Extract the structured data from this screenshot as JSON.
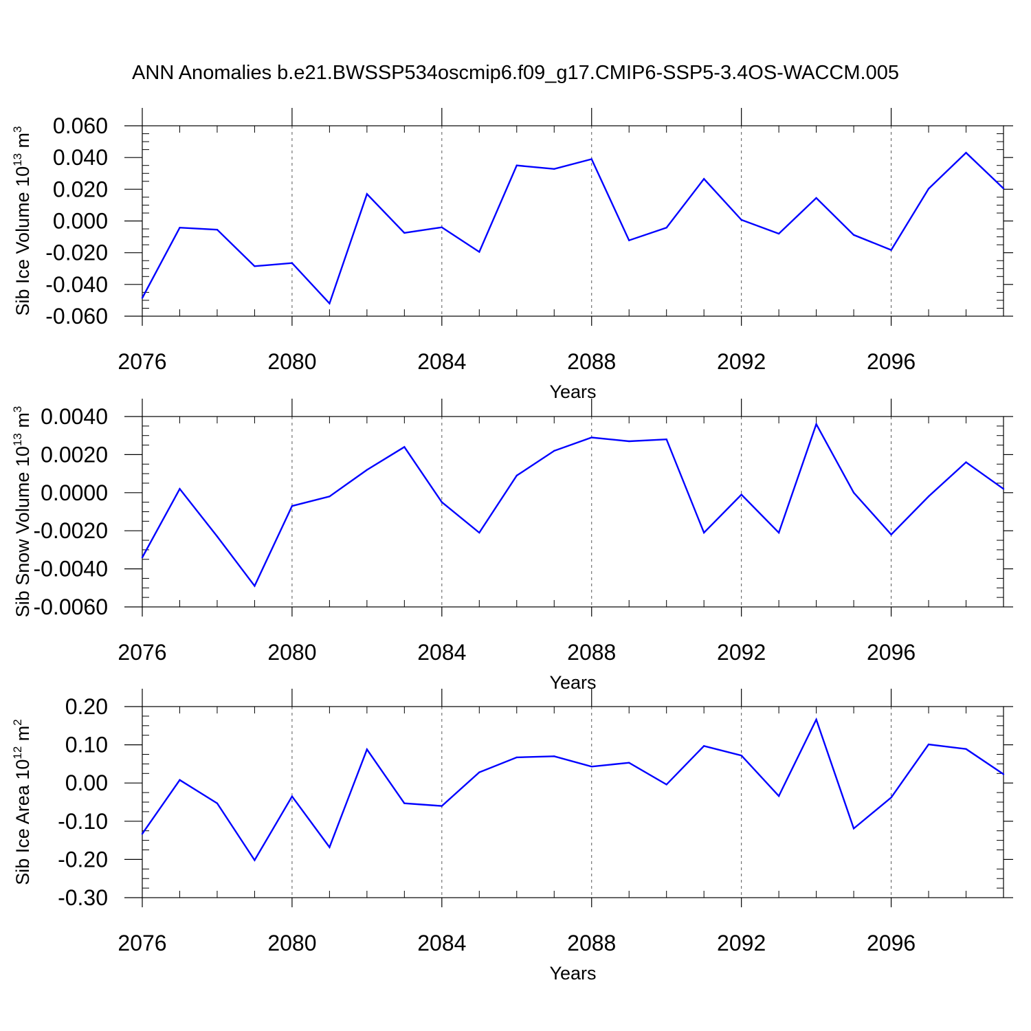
{
  "title": "ANN Anomalies b.e21.BWSSP534oscmip6.f09_g17.CMIP6-SSP5-3.4OS-WACCM.005",
  "colors": {
    "line": "#0000ff",
    "axis": "#000000",
    "grid": "#555555"
  },
  "chart_data": [
    {
      "type": "line",
      "name": "ice-volume",
      "ylabel": "Sib Ice Volume 10",
      "ylabel_sup": "13",
      "ylabel_unit": " m",
      "ylabel_unit_sup": "3",
      "xlabel": "Years",
      "xlim": [
        2076,
        2099
      ],
      "ylim": [
        -0.06,
        0.06
      ],
      "yticks": [
        -0.06,
        -0.04,
        -0.02,
        0.0,
        0.02,
        0.04,
        0.06
      ],
      "ytick_labels": [
        "-0.060",
        "-0.040",
        "-0.020",
        "0.000",
        "0.020",
        "0.040",
        "0.060"
      ],
      "xticks": [
        2076,
        2080,
        2084,
        2088,
        2092,
        2096
      ],
      "xtick_labels": [
        "2076",
        "2080",
        "2084",
        "2088",
        "2092",
        "2096"
      ],
      "x": [
        2076,
        2077,
        2078,
        2079,
        2080,
        2081,
        2082,
        2083,
        2084,
        2085,
        2086,
        2087,
        2088,
        2089,
        2090,
        2091,
        2092,
        2093,
        2094,
        2095,
        2096,
        2097,
        2098,
        2099
      ],
      "values": [
        -0.0485,
        -0.0042,
        -0.0055,
        -0.0285,
        -0.0265,
        -0.052,
        0.017,
        -0.0075,
        -0.004,
        -0.0195,
        0.035,
        0.0328,
        0.039,
        -0.0122,
        -0.0042,
        0.0265,
        0.0007,
        -0.008,
        0.0145,
        -0.0088,
        -0.0183,
        0.0203,
        0.043,
        0.0205
      ]
    },
    {
      "type": "line",
      "name": "snow-volume",
      "ylabel": "Sib Snow Volume 10",
      "ylabel_sup": "13",
      "ylabel_unit": " m",
      "ylabel_unit_sup": "3",
      "xlabel": "Years",
      "xlim": [
        2076,
        2099
      ],
      "ylim": [
        -0.006,
        0.004
      ],
      "yticks": [
        -0.006,
        -0.004,
        -0.002,
        0.0,
        0.002,
        0.004
      ],
      "ytick_labels": [
        "-0.0060",
        "-0.0040",
        "-0.0020",
        "0.0000",
        "0.0020",
        "0.0040"
      ],
      "xticks": [
        2076,
        2080,
        2084,
        2088,
        2092,
        2096
      ],
      "xtick_labels": [
        "2076",
        "2080",
        "2084",
        "2088",
        "2092",
        "2096"
      ],
      "x": [
        2076,
        2077,
        2078,
        2079,
        2080,
        2081,
        2082,
        2083,
        2084,
        2085,
        2086,
        2087,
        2088,
        2089,
        2090,
        2091,
        2092,
        2093,
        2094,
        2095,
        2096,
        2097,
        2098,
        2099
      ],
      "values": [
        -0.0034,
        0.0002,
        -0.0023,
        -0.0049,
        -0.0007,
        -0.0002,
        0.0012,
        0.0024,
        -0.0005,
        -0.0021,
        0.0009,
        0.0022,
        0.0029,
        0.0027,
        0.0028,
        -0.0021,
        -0.0001,
        -0.0021,
        0.0036,
        0.0,
        -0.0022,
        -0.0002,
        0.0016,
        0.0002
      ]
    },
    {
      "type": "line",
      "name": "ice-area",
      "ylabel": "Sib Ice Area 10",
      "ylabel_sup": "12",
      "ylabel_unit": " m",
      "ylabel_unit_sup": "2",
      "xlabel": "Years",
      "xlim": [
        2076,
        2099
      ],
      "ylim": [
        -0.3,
        0.2
      ],
      "yticks": [
        -0.3,
        -0.2,
        -0.1,
        0.0,
        0.1,
        0.2
      ],
      "ytick_labels": [
        "-0.30",
        "-0.20",
        "-0.10",
        "0.00",
        "0.10",
        "0.20"
      ],
      "xticks": [
        2076,
        2080,
        2084,
        2088,
        2092,
        2096
      ],
      "xtick_labels": [
        "2076",
        "2080",
        "2084",
        "2088",
        "2092",
        "2096"
      ],
      "x": [
        2076,
        2077,
        2078,
        2079,
        2080,
        2081,
        2082,
        2083,
        2084,
        2085,
        2086,
        2087,
        2088,
        2089,
        2090,
        2091,
        2092,
        2093,
        2094,
        2095,
        2096,
        2097,
        2098,
        2099
      ],
      "values": [
        -0.133,
        0.008,
        -0.053,
        -0.202,
        -0.035,
        -0.168,
        0.088,
        -0.053,
        -0.06,
        0.028,
        0.067,
        0.07,
        0.043,
        0.053,
        -0.004,
        0.097,
        0.072,
        -0.034,
        0.166,
        -0.119,
        -0.038,
        0.101,
        0.089,
        0.023
      ]
    }
  ]
}
